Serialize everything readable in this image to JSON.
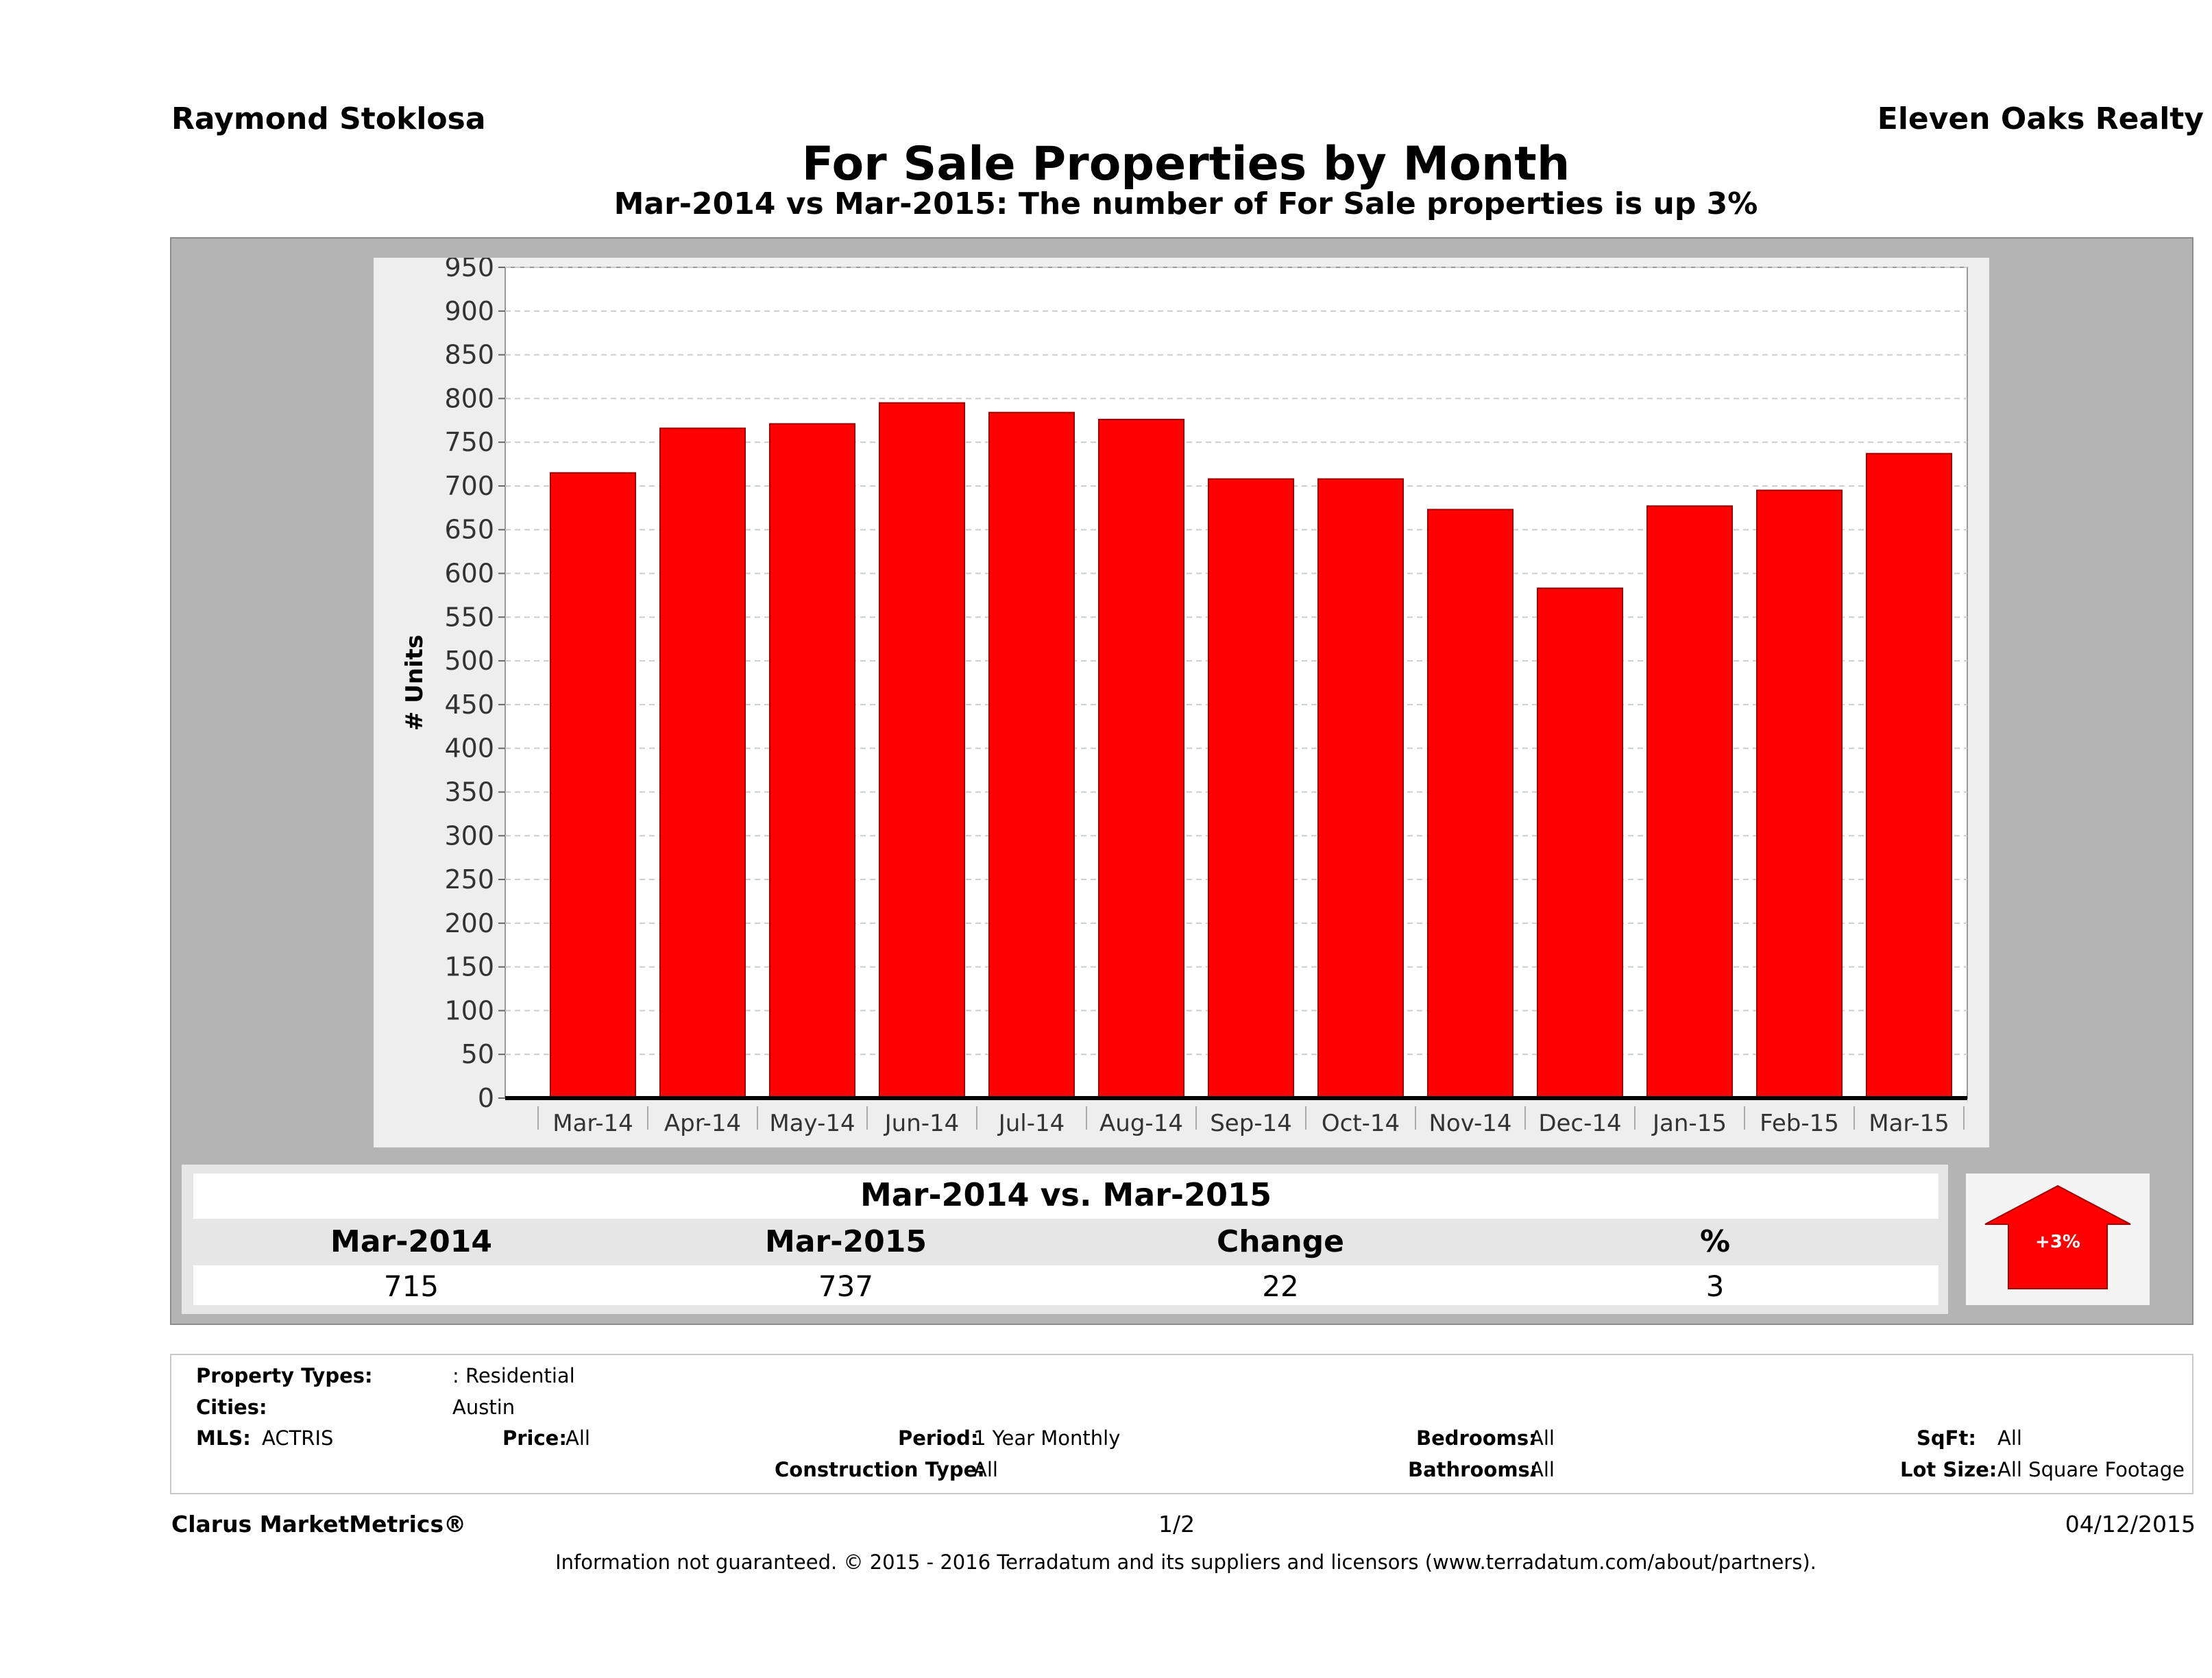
{
  "header": {
    "agent_name": "Raymond Stoklosa",
    "brokerage": "Eleven Oaks Realty",
    "title": "For Sale Properties by Month",
    "subtitle": "Mar-2014 vs Mar-2015: The number of For Sale  properties is up 3%"
  },
  "chart_data": {
    "type": "bar",
    "categories": [
      "Mar-14",
      "Apr-14",
      "May-14",
      "Jun-14",
      "Jul-14",
      "Aug-14",
      "Sep-14",
      "Oct-14",
      "Nov-14",
      "Dec-14",
      "Jan-15",
      "Feb-15",
      "Mar-15"
    ],
    "values": [
      715,
      766,
      771,
      795,
      784,
      776,
      708,
      708,
      673,
      583,
      677,
      695,
      737
    ],
    "title": "",
    "xlabel": "",
    "ylabel": "# Units",
    "ylim": [
      0,
      950
    ],
    "yticks": [
      0,
      50,
      100,
      150,
      200,
      250,
      300,
      350,
      400,
      450,
      500,
      550,
      600,
      650,
      700,
      750,
      800,
      850,
      900,
      950
    ],
    "grid": true,
    "bar_color": "#ff0000"
  },
  "summary": {
    "title": "Mar-2014 vs. Mar-2015",
    "columns": [
      {
        "label": "Mar-2014",
        "value": "715"
      },
      {
        "label": "Mar-2015",
        "value": "737"
      },
      {
        "label": "Change",
        "value": "22"
      },
      {
        "label": "%",
        "value": "3"
      }
    ],
    "badge": "+3%",
    "badge_color": "#ff0000"
  },
  "criteria": {
    "property_types_label": "Property Types:",
    "property_types_value": ": Residential",
    "cities_label": "Cities:",
    "cities_value": "Austin",
    "mls_label": "MLS:",
    "mls_value": "ACTRIS",
    "price_label": "Price:",
    "price_value": "All",
    "period_label": "Period:",
    "period_value": "1 Year Monthly",
    "bedrooms_label": "Bedrooms:",
    "bedrooms_value": "All",
    "sqft_label": "SqFt:",
    "sqft_value": "All",
    "construction_label": "Construction Type:",
    "construction_value": "All",
    "bathrooms_label": "Bathrooms:",
    "bathrooms_value": "All",
    "lot_label": "Lot Size:",
    "lot_value": "All Square Footage"
  },
  "footer": {
    "product": "Clarus MarketMetrics®",
    "page": "1/2",
    "date": "04/12/2015",
    "disclaimer": "Information not guaranteed. © 2015 - 2016 Terradatum and its suppliers and licensors (www.terradatum.com/about/partners)."
  }
}
